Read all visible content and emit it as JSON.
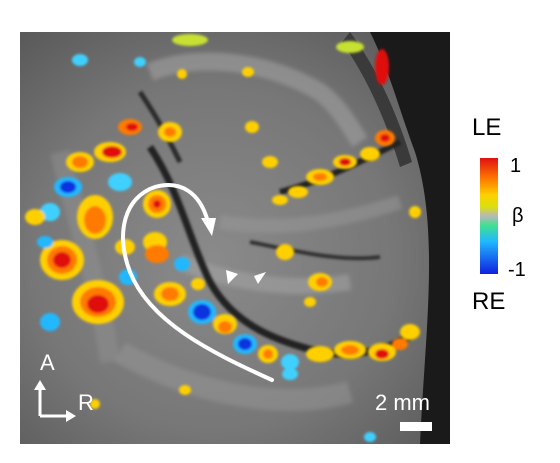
{
  "image": {
    "description_hidden": "",
    "colors": {
      "background": "#ffffff",
      "tissue": "#7a7a7a",
      "overlay_high": "#e02010",
      "overlay_low": "#1030e0"
    }
  },
  "colorbar": {
    "top_label": "LE",
    "bottom_label": "RE",
    "max_tick": "1",
    "mid_tick": "β",
    "min_tick": "-1",
    "stops": [
      "#e01010",
      "#ff7a00",
      "#ffd000",
      "#d8e010",
      "#b8b8b8",
      "#40e090",
      "#20b8ff",
      "#1020e0"
    ]
  },
  "orientation": {
    "anterior": "A",
    "right": "R"
  },
  "scale_bar": {
    "label": "2 mm"
  }
}
